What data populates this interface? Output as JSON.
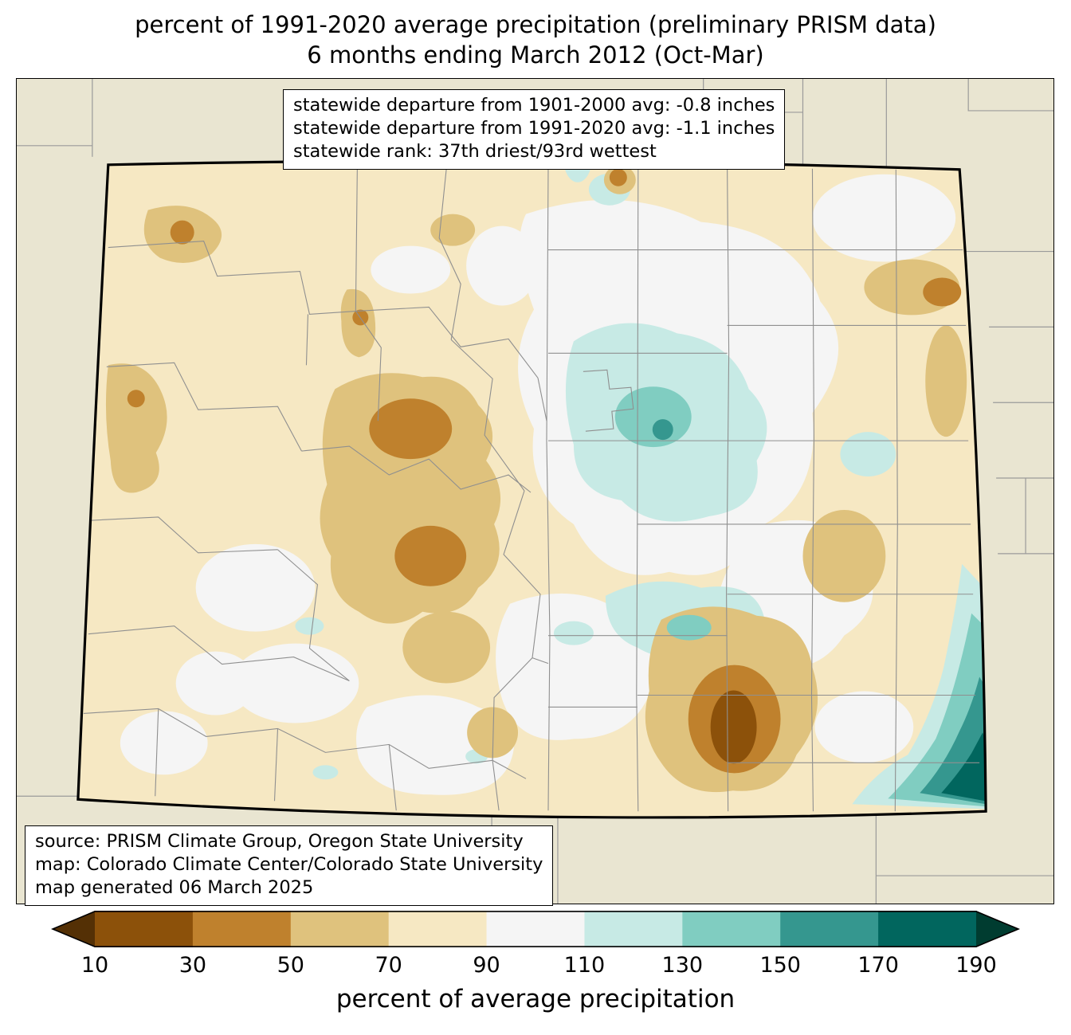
{
  "title": {
    "line1": "percent of 1991-2020 average precipitation (preliminary PRISM data)",
    "line2": "6 months ending March 2012 (Oct-Mar)"
  },
  "stats_box": {
    "line1": "statewide departure from 1901-2000 avg: -0.8 inches",
    "line2": "statewide departure from 1991-2020 avg: -1.1 inches",
    "line3": "statewide rank: 37th driest/93rd wettest"
  },
  "source_box": {
    "line1": "source: PRISM Climate Group, Oregon State University",
    "line2": "map: Colorado Climate Center/Colorado State University",
    "line3": "map generated 06 March 2025"
  },
  "colorbar": {
    "label": "percent of average precipitation",
    "ticks": [
      "10",
      "30",
      "50",
      "70",
      "90",
      "110",
      "130",
      "150",
      "170",
      "190"
    ],
    "left_arrow_color": "#543005",
    "right_arrow_color": "#003c30",
    "segment_colors": [
      "#8c510a",
      "#bf812d",
      "#dfc27d",
      "#f6e8c3",
      "#f5f5f5",
      "#c7eae5",
      "#80cdc1",
      "#35978f",
      "#01665e"
    ]
  },
  "map": {
    "region": "Colorado",
    "outside_color": "#e9e5d1",
    "base_fill": "#f6e8c3",
    "white_bin_fill": "#f5f5f5",
    "state_border_color": "#000000",
    "county_line_color": "#8f8f8f"
  }
}
